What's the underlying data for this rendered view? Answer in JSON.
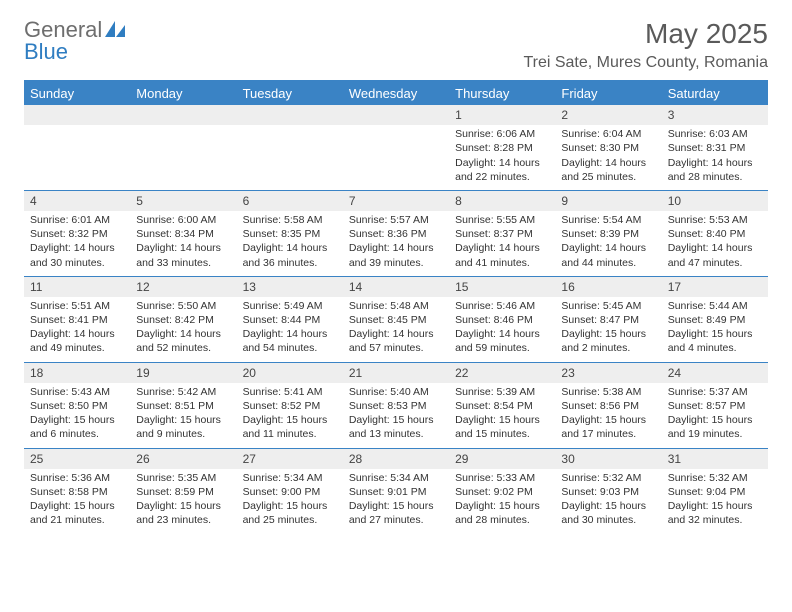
{
  "brand": {
    "word1": "General",
    "word2": "Blue"
  },
  "title": "May 2025",
  "location": "Trei Sate, Mures County, Romania",
  "colors": {
    "accent": "#3a83c5",
    "header_text": "#ffffff",
    "grey_row": "#eeeeee",
    "body_text": "#333333",
    "title_text": "#5a5a5a"
  },
  "weekdays": [
    "Sunday",
    "Monday",
    "Tuesday",
    "Wednesday",
    "Thursday",
    "Friday",
    "Saturday"
  ],
  "weeks": [
    [
      null,
      null,
      null,
      null,
      {
        "n": "1",
        "sr": "Sunrise: 6:06 AM",
        "ss": "Sunset: 8:28 PM",
        "dl": "Daylight: 14 hours and 22 minutes."
      },
      {
        "n": "2",
        "sr": "Sunrise: 6:04 AM",
        "ss": "Sunset: 8:30 PM",
        "dl": "Daylight: 14 hours and 25 minutes."
      },
      {
        "n": "3",
        "sr": "Sunrise: 6:03 AM",
        "ss": "Sunset: 8:31 PM",
        "dl": "Daylight: 14 hours and 28 minutes."
      }
    ],
    [
      {
        "n": "4",
        "sr": "Sunrise: 6:01 AM",
        "ss": "Sunset: 8:32 PM",
        "dl": "Daylight: 14 hours and 30 minutes."
      },
      {
        "n": "5",
        "sr": "Sunrise: 6:00 AM",
        "ss": "Sunset: 8:34 PM",
        "dl": "Daylight: 14 hours and 33 minutes."
      },
      {
        "n": "6",
        "sr": "Sunrise: 5:58 AM",
        "ss": "Sunset: 8:35 PM",
        "dl": "Daylight: 14 hours and 36 minutes."
      },
      {
        "n": "7",
        "sr": "Sunrise: 5:57 AM",
        "ss": "Sunset: 8:36 PM",
        "dl": "Daylight: 14 hours and 39 minutes."
      },
      {
        "n": "8",
        "sr": "Sunrise: 5:55 AM",
        "ss": "Sunset: 8:37 PM",
        "dl": "Daylight: 14 hours and 41 minutes."
      },
      {
        "n": "9",
        "sr": "Sunrise: 5:54 AM",
        "ss": "Sunset: 8:39 PM",
        "dl": "Daylight: 14 hours and 44 minutes."
      },
      {
        "n": "10",
        "sr": "Sunrise: 5:53 AM",
        "ss": "Sunset: 8:40 PM",
        "dl": "Daylight: 14 hours and 47 minutes."
      }
    ],
    [
      {
        "n": "11",
        "sr": "Sunrise: 5:51 AM",
        "ss": "Sunset: 8:41 PM",
        "dl": "Daylight: 14 hours and 49 minutes."
      },
      {
        "n": "12",
        "sr": "Sunrise: 5:50 AM",
        "ss": "Sunset: 8:42 PM",
        "dl": "Daylight: 14 hours and 52 minutes."
      },
      {
        "n": "13",
        "sr": "Sunrise: 5:49 AM",
        "ss": "Sunset: 8:44 PM",
        "dl": "Daylight: 14 hours and 54 minutes."
      },
      {
        "n": "14",
        "sr": "Sunrise: 5:48 AM",
        "ss": "Sunset: 8:45 PM",
        "dl": "Daylight: 14 hours and 57 minutes."
      },
      {
        "n": "15",
        "sr": "Sunrise: 5:46 AM",
        "ss": "Sunset: 8:46 PM",
        "dl": "Daylight: 14 hours and 59 minutes."
      },
      {
        "n": "16",
        "sr": "Sunrise: 5:45 AM",
        "ss": "Sunset: 8:47 PM",
        "dl": "Daylight: 15 hours and 2 minutes."
      },
      {
        "n": "17",
        "sr": "Sunrise: 5:44 AM",
        "ss": "Sunset: 8:49 PM",
        "dl": "Daylight: 15 hours and 4 minutes."
      }
    ],
    [
      {
        "n": "18",
        "sr": "Sunrise: 5:43 AM",
        "ss": "Sunset: 8:50 PM",
        "dl": "Daylight: 15 hours and 6 minutes."
      },
      {
        "n": "19",
        "sr": "Sunrise: 5:42 AM",
        "ss": "Sunset: 8:51 PM",
        "dl": "Daylight: 15 hours and 9 minutes."
      },
      {
        "n": "20",
        "sr": "Sunrise: 5:41 AM",
        "ss": "Sunset: 8:52 PM",
        "dl": "Daylight: 15 hours and 11 minutes."
      },
      {
        "n": "21",
        "sr": "Sunrise: 5:40 AM",
        "ss": "Sunset: 8:53 PM",
        "dl": "Daylight: 15 hours and 13 minutes."
      },
      {
        "n": "22",
        "sr": "Sunrise: 5:39 AM",
        "ss": "Sunset: 8:54 PM",
        "dl": "Daylight: 15 hours and 15 minutes."
      },
      {
        "n": "23",
        "sr": "Sunrise: 5:38 AM",
        "ss": "Sunset: 8:56 PM",
        "dl": "Daylight: 15 hours and 17 minutes."
      },
      {
        "n": "24",
        "sr": "Sunrise: 5:37 AM",
        "ss": "Sunset: 8:57 PM",
        "dl": "Daylight: 15 hours and 19 minutes."
      }
    ],
    [
      {
        "n": "25",
        "sr": "Sunrise: 5:36 AM",
        "ss": "Sunset: 8:58 PM",
        "dl": "Daylight: 15 hours and 21 minutes."
      },
      {
        "n": "26",
        "sr": "Sunrise: 5:35 AM",
        "ss": "Sunset: 8:59 PM",
        "dl": "Daylight: 15 hours and 23 minutes."
      },
      {
        "n": "27",
        "sr": "Sunrise: 5:34 AM",
        "ss": "Sunset: 9:00 PM",
        "dl": "Daylight: 15 hours and 25 minutes."
      },
      {
        "n": "28",
        "sr": "Sunrise: 5:34 AM",
        "ss": "Sunset: 9:01 PM",
        "dl": "Daylight: 15 hours and 27 minutes."
      },
      {
        "n": "29",
        "sr": "Sunrise: 5:33 AM",
        "ss": "Sunset: 9:02 PM",
        "dl": "Daylight: 15 hours and 28 minutes."
      },
      {
        "n": "30",
        "sr": "Sunrise: 5:32 AM",
        "ss": "Sunset: 9:03 PM",
        "dl": "Daylight: 15 hours and 30 minutes."
      },
      {
        "n": "31",
        "sr": "Sunrise: 5:32 AM",
        "ss": "Sunset: 9:04 PM",
        "dl": "Daylight: 15 hours and 32 minutes."
      }
    ]
  ]
}
